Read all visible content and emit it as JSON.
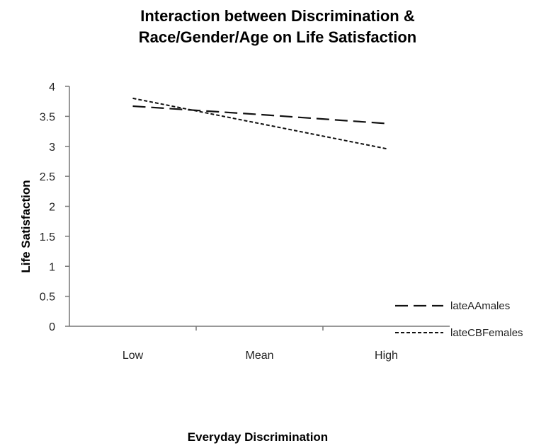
{
  "chart_data": {
    "type": "line",
    "title": [
      "Interaction between Discrimination &",
      "Race/Gender/Age on Life Satisfaction"
    ],
    "xlabel": "Everyday Discrimination",
    "ylabel": "Life Satisfaction",
    "categories": [
      "Low",
      "Mean",
      "High"
    ],
    "ylim": [
      0,
      4
    ],
    "yticks": [
      "0",
      "0.5",
      "1",
      "1.5",
      "2",
      "2.5",
      "3",
      "3.5",
      "4"
    ],
    "grid": false,
    "legend_position": "right",
    "series": [
      {
        "name": "lateAAmales",
        "values": [
          3.67,
          3.53,
          3.38
        ],
        "dash": "long-dash",
        "color": "#111111"
      },
      {
        "name": "lateCBFemales",
        "values": [
          3.8,
          3.38,
          2.96
        ],
        "dash": "short-dash",
        "color": "#111111"
      }
    ]
  }
}
